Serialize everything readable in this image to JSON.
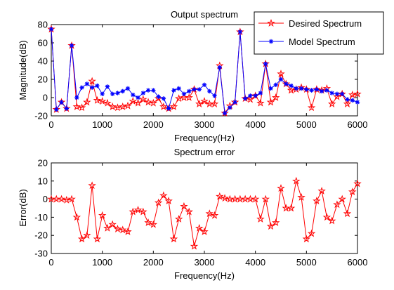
{
  "chart_data": [
    {
      "type": "line",
      "title": "Output spectrum",
      "xlabel": "Frequency(Hz)",
      "ylabel": "Magnitude(dB)",
      "xlim": [
        0,
        6000
      ],
      "ylim": [
        -20,
        80
      ],
      "xticks": [
        0,
        1000,
        2000,
        3000,
        4000,
        5000,
        6000
      ],
      "yticks": [
        -20,
        0,
        20,
        40,
        60,
        80
      ],
      "grid": false,
      "legend_position": "top-right",
      "x": [
        0,
        100,
        200,
        300,
        400,
        500,
        600,
        700,
        800,
        900,
        1000,
        1100,
        1200,
        1300,
        1400,
        1500,
        1600,
        1700,
        1800,
        1900,
        2000,
        2100,
        2200,
        2300,
        2400,
        2500,
        2600,
        2700,
        2800,
        2900,
        3000,
        3100,
        3200,
        3300,
        3400,
        3500,
        3600,
        3700,
        3800,
        3900,
        4000,
        4100,
        4200,
        4300,
        4400,
        4500,
        4600,
        4700,
        4800,
        4900,
        5000,
        5100,
        5200,
        5300,
        5400,
        5500,
        5600,
        5700,
        5800,
        5900,
        6000
      ],
      "series": [
        {
          "name": "Desired Spectrum",
          "color": "#ff0000",
          "marker": "pentagram",
          "values": [
            75,
            -13,
            -5,
            -12,
            57,
            -10,
            -11,
            -5,
            18,
            -3,
            -4,
            -6,
            -10,
            -11,
            -10,
            -9,
            -4,
            -6,
            -2,
            -5,
            -6,
            -1,
            -10,
            -12,
            -10,
            -1,
            0,
            0,
            9,
            -7,
            -4,
            -7,
            -7,
            35,
            -17,
            -9,
            -5,
            72,
            -1,
            -2,
            2,
            -6,
            37,
            -5,
            0,
            26,
            15,
            8,
            9,
            11,
            9,
            -11,
            9,
            8,
            10,
            -7,
            1,
            4,
            -7,
            3,
            4
          ]
        },
        {
          "name": "Model Spectrum",
          "color": "#0000ff",
          "marker": "asterisk",
          "values": [
            75,
            -13,
            -5,
            -12,
            57,
            0,
            11,
            15,
            11,
            13,
            4,
            12,
            4,
            5,
            7,
            10,
            3,
            0,
            5,
            8,
            8,
            1,
            -1,
            -12,
            8,
            10,
            4,
            7,
            9,
            9,
            14,
            7,
            2,
            33,
            -17,
            -11,
            -5,
            72,
            -1,
            2,
            2,
            5,
            37,
            10,
            14,
            20,
            15,
            13,
            10,
            10,
            9,
            8,
            9,
            7,
            8,
            5,
            4,
            4,
            -2,
            -3,
            -5
          ]
        }
      ]
    },
    {
      "type": "line",
      "title": "Spectrum error",
      "xlabel": "Frequency(Hz)",
      "ylabel": "Error(dB)",
      "xlim": [
        0,
        6000
      ],
      "ylim": [
        -30,
        20
      ],
      "xticks": [
        0,
        1000,
        2000,
        3000,
        4000,
        5000,
        6000
      ],
      "yticks": [
        -30,
        -20,
        -10,
        0,
        10,
        20
      ],
      "grid": false,
      "x": [
        0,
        100,
        200,
        300,
        400,
        500,
        600,
        700,
        800,
        900,
        1000,
        1100,
        1200,
        1300,
        1400,
        1500,
        1600,
        1700,
        1800,
        1900,
        2000,
        2100,
        2200,
        2300,
        2400,
        2500,
        2600,
        2700,
        2800,
        2900,
        3000,
        3100,
        3200,
        3300,
        3400,
        3500,
        3600,
        3700,
        3800,
        3900,
        4000,
        4100,
        4200,
        4300,
        4400,
        4500,
        4600,
        4700,
        4800,
        4900,
        5000,
        5100,
        5200,
        5300,
        5400,
        5500,
        5600,
        5700,
        5800,
        5900,
        6000
      ],
      "series": [
        {
          "color": "#ff0000",
          "marker": "pentagram",
          "values": [
            0,
            0,
            0,
            -0.5,
            0,
            -10,
            -22,
            -20,
            7.5,
            -22,
            -9,
            -16,
            -14,
            -16.5,
            -17,
            -18,
            -7,
            -6,
            -7,
            -13,
            -14,
            -2,
            2,
            -1,
            -22,
            -11,
            -4,
            -7,
            -26,
            -16,
            -18,
            -8,
            -9,
            1.5,
            0.5,
            0,
            0,
            0,
            0,
            0,
            0,
            -11,
            0,
            -15,
            -13,
            6,
            -5,
            -5,
            10,
            1,
            -22,
            -19,
            -1,
            4.5,
            -10,
            -12,
            -3,
            0,
            -8,
            4,
            8.5
          ]
        }
      ]
    }
  ]
}
